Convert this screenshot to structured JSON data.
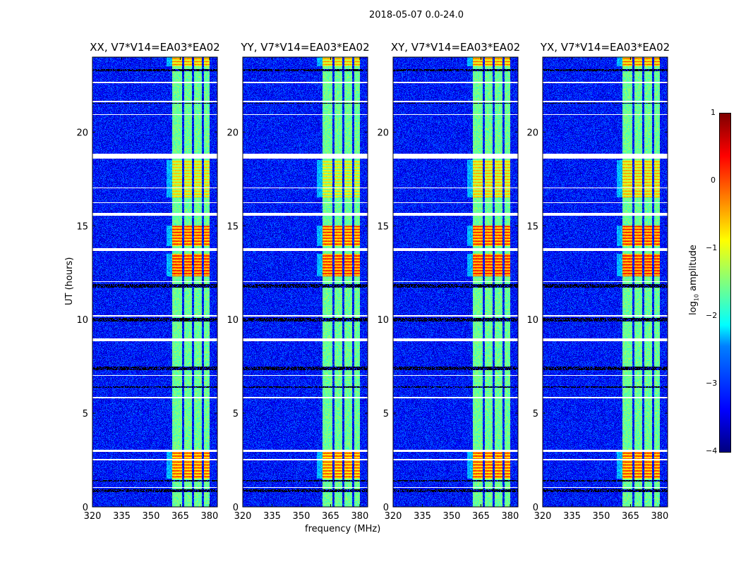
{
  "chart_data": {
    "type": "heatmap",
    "title": "2018-05-07 0.0-24.0",
    "xlabel": "frequency (MHz)",
    "ylabel": "UT (hours)",
    "xlim": [
      320,
      384
    ],
    "ylim": [
      0,
      24
    ],
    "xticks": [
      320,
      335,
      350,
      365,
      380
    ],
    "yticks": [
      0,
      5,
      10,
      15,
      20
    ],
    "colorbar": {
      "label": "log10 amplitude",
      "label_main": "log",
      "label_sub": "10",
      "label_rest": " amplitude",
      "range": [
        -4,
        1
      ],
      "ticks": [
        "1",
        "0",
        "−1",
        "−2",
        "−3",
        "−4"
      ],
      "colormap": "jet"
    },
    "panels": [
      {
        "title": "XX, V7*V14=EA03*EA02",
        "bright_scale": 1.0
      },
      {
        "title": "YY, V7*V14=EA03*EA02",
        "bright_scale": 1.15
      },
      {
        "title": "XY, V7*V14=EA03*EA02",
        "bright_scale": 0.9
      },
      {
        "title": "YX, V7*V14=EA03*EA02",
        "bright_scale": 0.85
      }
    ],
    "background_level": -3.3,
    "band_level": -1.6,
    "band_channels_mhz": [
      [
        361,
        366
      ],
      [
        367,
        371
      ],
      [
        372,
        376
      ],
      [
        377,
        380
      ]
    ],
    "bright_intervals_hours": [
      [
        1.5,
        3.0,
        -0.4
      ],
      [
        12.3,
        13.5,
        -0.2
      ],
      [
        13.9,
        15.0,
        -0.3
      ],
      [
        23.5,
        24.0,
        -0.7
      ],
      [
        16.5,
        18.5,
        -1.0
      ]
    ],
    "flagged_white_hours": [
      [
        18.6,
        18.85
      ],
      [
        15.55,
        15.7
      ],
      [
        13.65,
        13.8
      ],
      [
        8.85,
        9.0
      ],
      [
        10.15,
        10.25
      ],
      [
        2.95,
        3.05
      ],
      [
        22.6,
        22.7
      ],
      [
        21.6,
        21.65
      ],
      [
        20.9,
        20.95
      ],
      [
        5.8,
        5.85
      ],
      [
        7.0,
        7.05
      ],
      [
        12.0,
        12.05
      ],
      [
        17.0,
        17.05
      ],
      [
        1.0,
        1.05
      ],
      [
        2.5,
        2.55
      ],
      [
        16.2,
        16.25
      ]
    ],
    "flagged_black_hours": [
      [
        0.8,
        0.95
      ],
      [
        6.35,
        6.42
      ],
      [
        7.3,
        7.5
      ],
      [
        9.9,
        10.1
      ],
      [
        11.7,
        11.9
      ],
      [
        23.25,
        23.35
      ],
      [
        1.35,
        1.42
      ],
      [
        21.5,
        21.55
      ]
    ]
  }
}
